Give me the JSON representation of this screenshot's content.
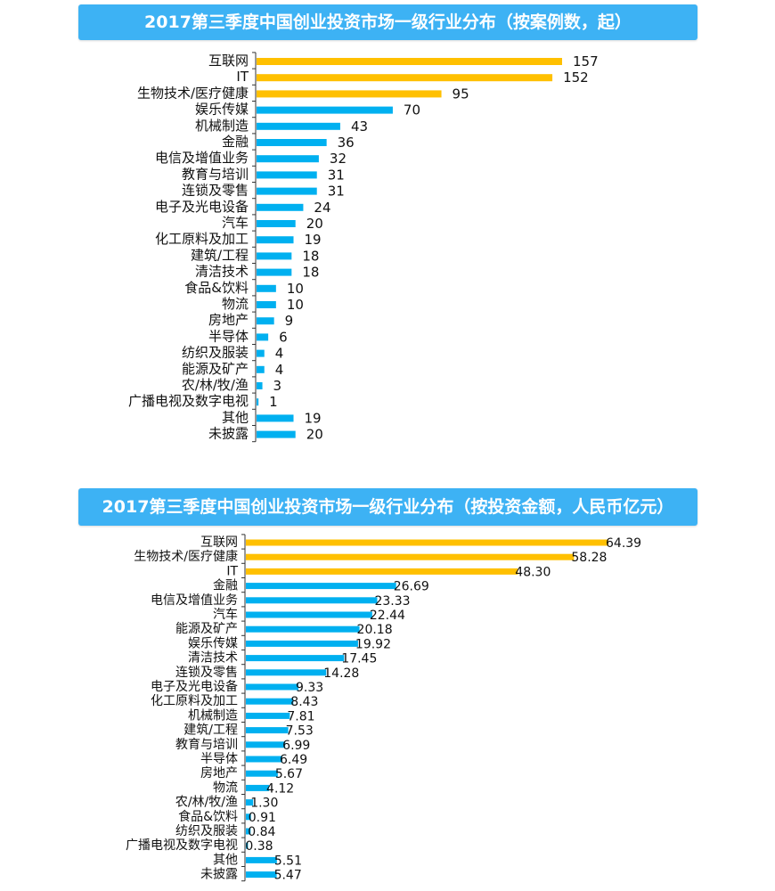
{
  "colors": {
    "top3": "#FFC000",
    "other": "#00B0F0",
    "title_bg": "#3DB2F4"
  },
  "chart_data": [
    {
      "type": "bar",
      "orientation": "horizontal",
      "title": "2017第三季度中国创业投资市场一级行业分布（按案例数，起）",
      "categories": [
        "互联网",
        "IT",
        "生物技术/医疗健康",
        "娱乐传媒",
        "机械制造",
        "金融",
        "电信及增值业务",
        "教育与培训",
        "连锁及零售",
        "电子及光电设备",
        "汽车",
        "化工原料及加工",
        "建筑/工程",
        "清洁技术",
        "食品&饮料",
        "物流",
        "房地产",
        "半导体",
        "纺织及服装",
        "能源及矿产",
        "农/林/牧/渔",
        "广播电视及数字电视",
        "其他",
        "未披露"
      ],
      "values": [
        157,
        152,
        95,
        70,
        43,
        36,
        32,
        31,
        31,
        24,
        20,
        19,
        18,
        18,
        10,
        10,
        9,
        6,
        4,
        4,
        3,
        1,
        19,
        20
      ],
      "value_labels": [
        "157",
        "152",
        "95",
        "70",
        "43",
        "36",
        "32",
        "31",
        "31",
        "24",
        "20",
        "19",
        "18",
        "18",
        "10",
        "10",
        "9",
        "6",
        "4",
        "4",
        "3",
        "1",
        "19",
        "20"
      ],
      "highlight_top": 3,
      "xlim": [
        0,
        157
      ]
    },
    {
      "type": "bar",
      "orientation": "horizontal",
      "title": "2017第三季度中国创业投资市场一级行业分布（按投资金额，人民币亿元）",
      "categories": [
        "互联网",
        "生物技术/医疗健康",
        "IT",
        "金融",
        "电信及增值业务",
        "汽车",
        "能源及矿产",
        "娱乐传媒",
        "清洁技术",
        "连锁及零售",
        "电子及光电设备",
        "化工原料及加工",
        "机械制造",
        "建筑/工程",
        "教育与培训",
        "半导体",
        "房地产",
        "物流",
        "农/林/牧/渔",
        "食品&饮料",
        "纺织及服装",
        "广播电视及数字电视",
        "其他",
        "未披露"
      ],
      "values": [
        64.39,
        58.28,
        48.3,
        26.69,
        23.33,
        22.44,
        20.18,
        19.92,
        17.45,
        14.28,
        9.33,
        8.43,
        7.81,
        7.53,
        6.99,
        6.49,
        5.67,
        4.12,
        1.3,
        0.91,
        0.84,
        0.38,
        5.51,
        5.47
      ],
      "value_labels": [
        "64.39",
        "58.28",
        "48.30",
        "26.69",
        "23.33",
        "22.44",
        "20.18",
        "19.92",
        "17.45",
        "14.28",
        "9.33",
        "8.43",
        "7.81",
        "7.53",
        "6.99",
        "6.49",
        "5.67",
        "4.12",
        "1.30",
        "0.91",
        "0.84",
        "0.38",
        "5.51",
        "5.47"
      ],
      "highlight_top": 3,
      "xlim": [
        0,
        64.39
      ]
    }
  ]
}
